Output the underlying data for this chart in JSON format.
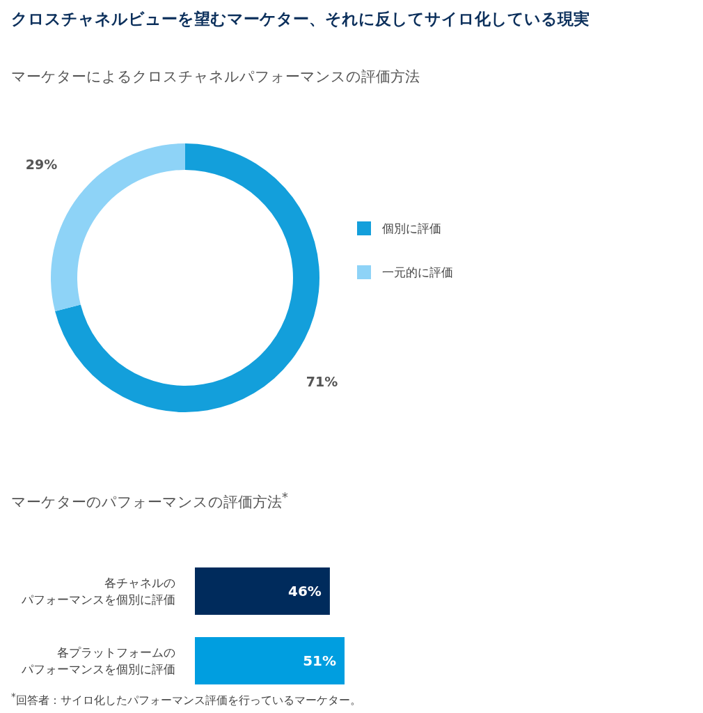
{
  "chart_data": [
    {
      "type": "donut",
      "title": "クロスチャネルビューを望むマーケター、それに反してサイロ化している現実",
      "subtitle": "マーケターによるクロスチャネルパフォーマンスの評価方法",
      "categories": [
        "個別に評価",
        "一元的に評価"
      ],
      "values": [
        71,
        29
      ],
      "colors": [
        "#139fdb",
        "#8ed3f7"
      ],
      "value_labels": [
        "71%",
        "29%"
      ],
      "legend": "right"
    },
    {
      "type": "bar",
      "orientation": "horizontal",
      "title": "マーケターのパフォーマンスの評価方法$^{*}$",
      "categories": [
        "各チャネルのパフォーマンスを個別に評価",
        "各プラットフォームのパフォーマンスを個別に評価"
      ],
      "values": [
        46,
        51
      ],
      "colors": [
        "#002b5c",
        "#009ee0"
      ],
      "value_labels": [
        "46%",
        "51%"
      ],
      "annotations": [
        "$^{*}$回答者：サイロ化したパフォーマンス評価を行っているマーケター。"
      ]
    }
  ]
}
